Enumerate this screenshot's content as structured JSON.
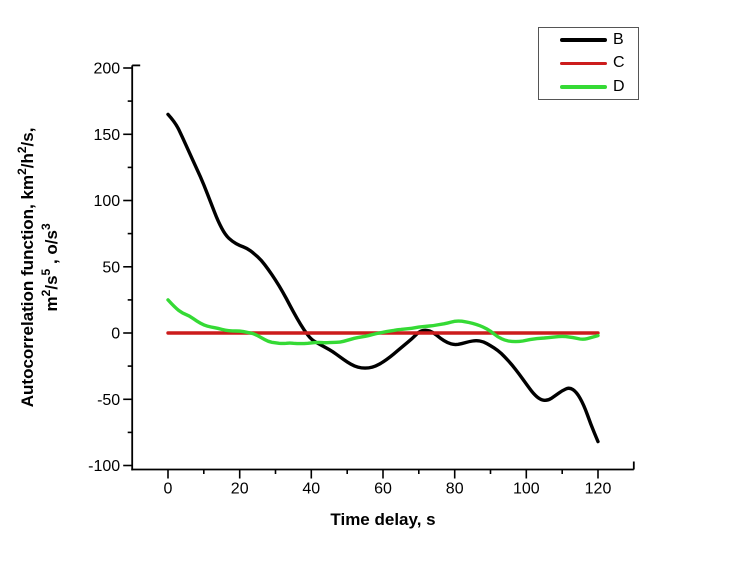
{
  "chart_data": {
    "type": "line",
    "title": "",
    "xlabel": "Time delay, s",
    "ylabel": "Autocorrelation function, km²/h²/s, m²/s⁵ , o/s³",
    "ylabel_lines": [
      {
        "segments": [
          [
            "Autocorrelation function, km",
            0
          ],
          [
            "2",
            1
          ],
          [
            "/h",
            0
          ],
          [
            "2",
            1
          ],
          [
            "/s,",
            0
          ]
        ]
      },
      {
        "segments": [
          [
            "m",
            0
          ],
          [
            "2",
            1
          ],
          [
            "/s",
            0
          ],
          [
            "5",
            1
          ],
          [
            " , o/s",
            0
          ],
          [
            "3",
            1
          ]
        ]
      }
    ],
    "xlim": [
      -10,
      130
    ],
    "ylim": [
      -103,
      202
    ],
    "x_ticks": [
      0,
      20,
      40,
      60,
      80,
      100,
      120
    ],
    "x_minor_ticks": [
      10,
      30,
      50,
      70,
      90,
      110
    ],
    "y_ticks": [
      200,
      150,
      100,
      50,
      0,
      -50,
      -100
    ],
    "y_minor_ticks": [
      175,
      125,
      75,
      25,
      -25,
      -75
    ],
    "grid": false,
    "legend_position": "top-right-outside",
    "axis_color": "#000000",
    "x": [
      0,
      2,
      4,
      6,
      8,
      10,
      12,
      14,
      16,
      18,
      20,
      22,
      24,
      26,
      28,
      30,
      32,
      34,
      36,
      38,
      40,
      42,
      44,
      46,
      48,
      50,
      52,
      54,
      56,
      58,
      60,
      62,
      64,
      66,
      68,
      70,
      72,
      74,
      76,
      78,
      80,
      82,
      84,
      86,
      88,
      90,
      92,
      94,
      96,
      98,
      100,
      102,
      104,
      106,
      108,
      110,
      112,
      114,
      116,
      118,
      120
    ],
    "series": [
      {
        "name": "B",
        "color": "#000000",
        "values": [
          165,
          159,
          148,
          136,
          124,
          112,
          98,
          84,
          74,
          69,
          66,
          64,
          60,
          55,
          48,
          40,
          31,
          21,
          11,
          2,
          -5,
          -8,
          -11,
          -14,
          -18,
          -22,
          -25,
          -26.5,
          -26.5,
          -25,
          -22,
          -18,
          -13.5,
          -9,
          -4.5,
          1,
          2.5,
          0.5,
          -4,
          -7.5,
          -9,
          -8,
          -6.5,
          -5.5,
          -6.5,
          -9.5,
          -13,
          -18,
          -24,
          -31,
          -38.5,
          -46,
          -50.5,
          -51,
          -47.5,
          -43.5,
          -41,
          -44.5,
          -54,
          -69,
          -82
        ]
      },
      {
        "name": "C",
        "color": "#cc1c1c",
        "values": [
          0,
          0,
          0,
          0,
          0,
          0,
          0,
          0,
          0,
          0,
          0,
          0,
          0,
          0,
          0,
          0,
          0,
          0,
          0,
          0,
          0,
          0,
          0,
          0,
          0,
          0,
          0,
          0,
          0,
          0,
          0,
          0,
          0,
          0,
          0,
          0,
          0,
          0,
          0,
          0,
          0,
          0,
          0,
          0,
          0,
          0,
          0,
          0,
          0,
          0,
          0,
          0,
          0,
          0,
          0,
          0,
          0,
          0,
          0,
          0,
          0
        ]
      },
      {
        "name": "D",
        "color": "#35da35",
        "values": [
          25,
          19,
          15,
          13,
          9,
          6,
          4.5,
          3.5,
          2,
          1.5,
          1.5,
          0.5,
          -0.5,
          -3.5,
          -6.5,
          -7.5,
          -8,
          -7.5,
          -8,
          -8,
          -7.5,
          -7,
          -7.5,
          -7,
          -7,
          -5.5,
          -4,
          -3,
          -2,
          -0.5,
          0.5,
          1.5,
          2.5,
          3,
          3.5,
          4.5,
          5,
          5.5,
          6.5,
          7.5,
          9,
          9,
          8,
          6.5,
          4.5,
          1.5,
          -3,
          -5.5,
          -6.5,
          -6.5,
          -5.5,
          -4.5,
          -4,
          -3.5,
          -3,
          -2.5,
          -3,
          -4,
          -5,
          -3.5,
          -2
        ]
      }
    ]
  }
}
